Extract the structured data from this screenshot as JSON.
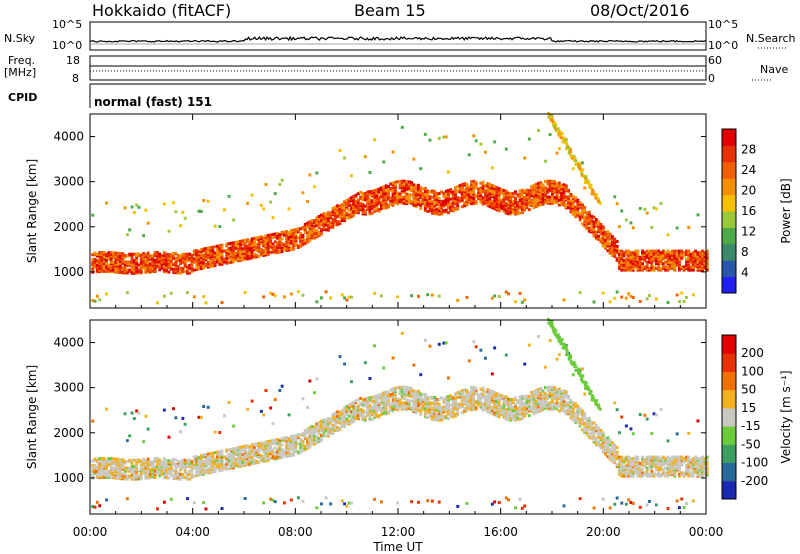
{
  "header": {
    "station": "Hokkaido (fitACF)",
    "beam": "Beam 15",
    "date": "08/Oct/2016"
  },
  "strip": {
    "nsky_label": "N.Sky",
    "nsearch_label": "N.Search",
    "nsky_top": "10^5",
    "nsky_bottom": "10^0",
    "freq_label_1": "Freq.",
    "freq_label_2": "[MHz]",
    "freq_top": "18",
    "freq_bottom": "8",
    "nave_label": "Nave",
    "nave_top": "60",
    "nave_bottom": "0",
    "cpid_label": "CPID",
    "cpid_text": "normal (fast) 151"
  },
  "chart_data": [
    {
      "type": "heatmap",
      "parameter": "power",
      "ylabel": "Slant Range [km]",
      "ylim": [
        200,
        4500
      ],
      "yticks": [
        1000,
        2000,
        3000,
        4000
      ],
      "xlim": [
        0,
        24
      ],
      "colorbar_label": "Power [dB]",
      "colorbar_ticks": [
        "4",
        "8",
        "12",
        "16",
        "20",
        "24",
        "28"
      ],
      "colorbar_colors": [
        "#1f1ff0",
        "#2a55a8",
        "#3a8a6a",
        "#4caa48",
        "#9ac83a",
        "#f5c000",
        "#f59000",
        "#f06000",
        "#e83000",
        "#e00000"
      ]
    },
    {
      "type": "heatmap",
      "parameter": "velocity",
      "ylabel": "Slant Range [km]",
      "ylim": [
        200,
        4500
      ],
      "yticks": [
        1000,
        2000,
        3000,
        4000
      ],
      "xlim": [
        0,
        24
      ],
      "xticks": [
        "00:00",
        "04:00",
        "08:00",
        "12:00",
        "16:00",
        "20:00",
        "00:00"
      ],
      "xlabel": "Time UT",
      "colorbar_label": "Velocity [m s⁻¹]",
      "colorbar_ticks": [
        "200",
        "100",
        "50",
        "15",
        "-15",
        "-50",
        "-100",
        "-200"
      ],
      "colorbar_colors": [
        "#1a2ab0",
        "#2a6a9a",
        "#3aa060",
        "#6acc3a",
        "#c8c8c0",
        "#f0b020",
        "#f07000",
        "#e83000",
        "#e00000"
      ],
      "ground_color": "#b4b4b4"
    }
  ]
}
